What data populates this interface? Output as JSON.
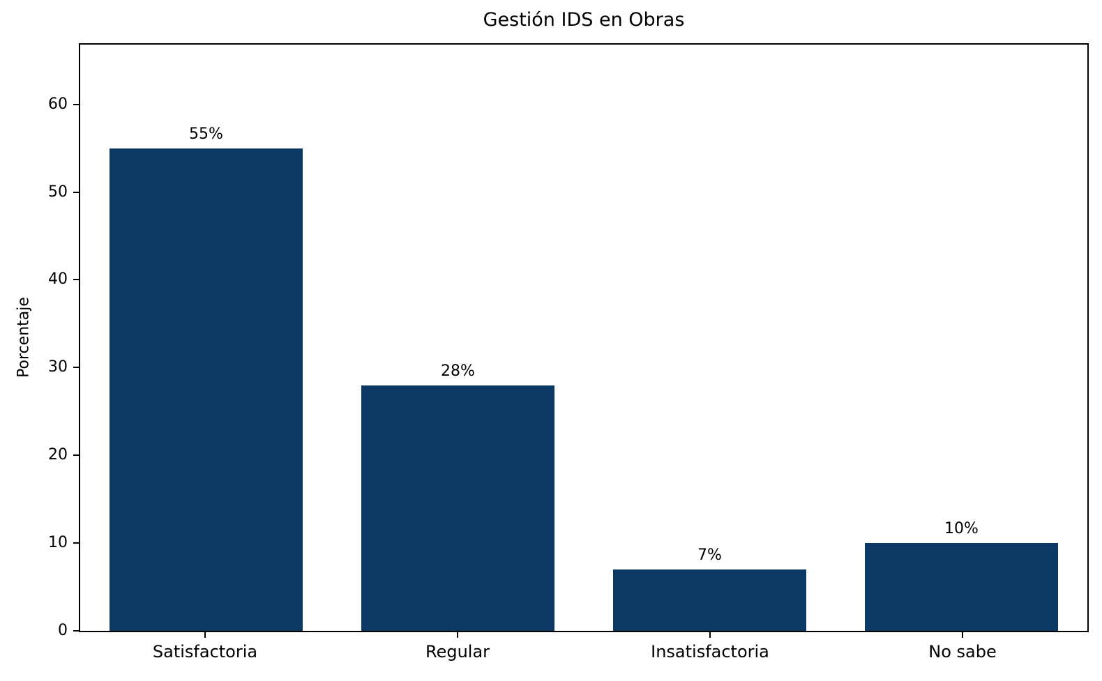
{
  "figure": {
    "background_color": "#ffffff",
    "text_color": "#000000"
  },
  "chart_data": {
    "type": "bar",
    "title": "Gestión IDS en Obras",
    "xlabel": "",
    "ylabel": "Porcentaje",
    "categories": [
      "Satisfactoria",
      "Regular",
      "Insatisfactoria",
      "No sabe"
    ],
    "values": [
      55,
      28,
      7,
      10
    ],
    "bar_labels": [
      "55%",
      "28%",
      "7%",
      "10%"
    ],
    "bar_color": "#0c3866",
    "ylim": [
      0,
      66.8
    ],
    "yticks": [
      0,
      10,
      20,
      30,
      40,
      50,
      60
    ],
    "grid": false,
    "legend": null,
    "axes_frame": true
  }
}
